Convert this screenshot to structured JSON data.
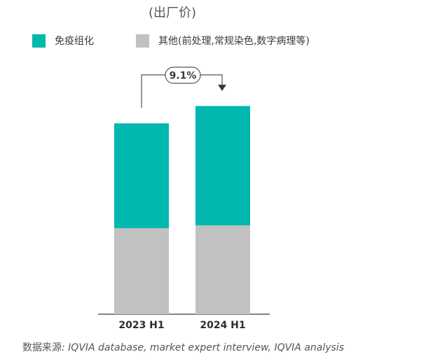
{
  "subtitle": "(出厂价)",
  "legend": [
    {
      "label": "免疫组化",
      "color": "#00b8ae"
    },
    {
      "label": "其他(前处理,常规染色,数字病理等)",
      "color": "#c1c1c1"
    }
  ],
  "chart_data": {
    "type": "bar",
    "stacked": true,
    "categories": [
      "2023 H1",
      "2024 H1"
    ],
    "series": [
      {
        "name": "其他(前处理,常规染色,数字病理等)",
        "color": "#c1c1c1",
        "values": [
          49.6,
          51.2
        ]
      },
      {
        "name": "免疫组化",
        "color": "#00b8ae",
        "values": [
          60.4,
          68.8
        ]
      }
    ],
    "ylim": [
      0,
      121
    ],
    "growth_label": "9.1%",
    "xlabel": "",
    "ylabel": ""
  },
  "source": {
    "prefix": "数据来源",
    "text": ": IQVIA database, market expert interview, IQVIA analysis"
  }
}
